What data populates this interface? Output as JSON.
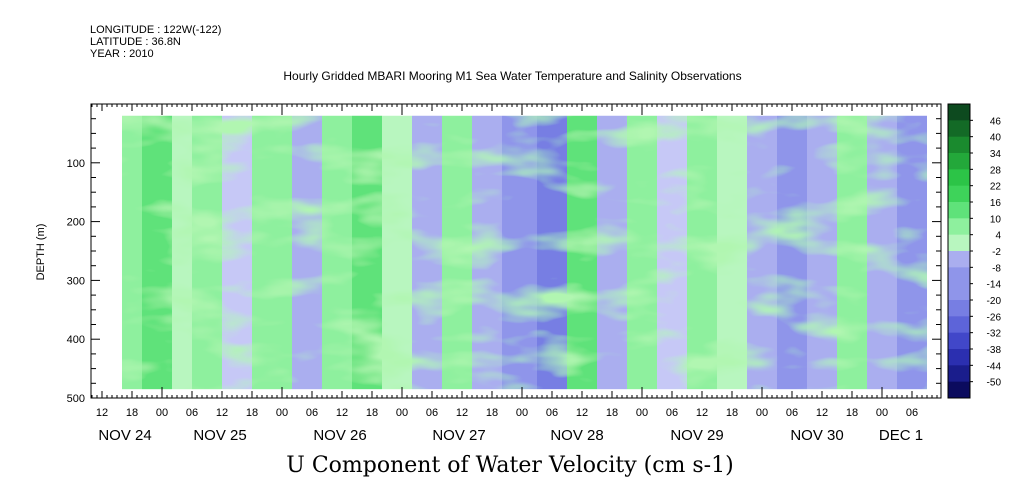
{
  "header": {
    "longitude": "LONGITUDE : 122W(-122)",
    "latitude": "LATITUDE : 36.8N",
    "year": "YEAR : 2010"
  },
  "chart_data": {
    "type": "heatmap",
    "title": "Hourly Gridded MBARI Mooring M1 Sea Water Temperature and Salinity Observations",
    "xlabel": "U Component of Water Velocity (cm s-1)",
    "ylabel": "DEPTH (m)",
    "ylim": [
      500,
      0
    ],
    "y_ticks": [
      "100",
      "200",
      "300",
      "400",
      "500"
    ],
    "x_hour_ticks": [
      "12",
      "18",
      "00",
      "06",
      "12",
      "18",
      "00",
      "06",
      "12",
      "18",
      "00",
      "06",
      "12",
      "18",
      "00",
      "06",
      "12",
      "18",
      "00",
      "06",
      "12",
      "18",
      "00",
      "06",
      "12",
      "18",
      "00",
      "06"
    ],
    "x_day_labels": [
      "NOV 24",
      "NOV 25",
      "NOV 26",
      "NOV 27",
      "NOV 28",
      "NOV 29",
      "NOV 30",
      "DEC  1"
    ],
    "data_extent": {
      "time_start": "NOV 24 16:00",
      "time_end": "DEC 1 09:00",
      "depth_min": 20,
      "depth_max": 485
    },
    "colorbar": {
      "labels": [
        "46",
        "40",
        "34",
        "28",
        "22",
        "16",
        "10",
        "4",
        "-2",
        "-8",
        "-14",
        "-20",
        "-26",
        "-32",
        "-38",
        "-44",
        "-50"
      ],
      "range": [
        -50,
        50
      ]
    },
    "velocity_bands": [
      {
        "start": "NOV 24 16:00",
        "end": "NOV 24 20:00",
        "value": 6
      },
      {
        "start": "NOV 24 20:00",
        "end": "NOV 25 02:00",
        "value": 10
      },
      {
        "start": "NOV 25 02:00",
        "end": "NOV 25 06:00",
        "value": 3
      },
      {
        "start": "NOV 25 06:00",
        "end": "NOV 25 12:00",
        "value": 9
      },
      {
        "start": "NOV 25 12:00",
        "end": "NOV 25 18:00",
        "value": -1
      },
      {
        "start": "NOV 25 18:00",
        "end": "NOV 26 02:00",
        "value": 9
      },
      {
        "start": "NOV 26 02:00",
        "end": "NOV 26 08:00",
        "value": -3
      },
      {
        "start": "NOV 26 08:00",
        "end": "NOV 26 14:00",
        "value": 6
      },
      {
        "start": "NOV 26 14:00",
        "end": "NOV 26 20:00",
        "value": 12
      },
      {
        "start": "NOV 26 20:00",
        "end": "NOV 27 02:00",
        "value": 2
      },
      {
        "start": "NOV 27 02:00",
        "end": "NOV 27 08:00",
        "value": -7
      },
      {
        "start": "NOV 27 08:00",
        "end": "NOV 27 14:00",
        "value": 4
      },
      {
        "start": "NOV 27 14:00",
        "end": "NOV 27 20:00",
        "value": -5
      },
      {
        "start": "NOV 27 20:00",
        "end": "NOV 28 03:00",
        "value": -9
      },
      {
        "start": "NOV 28 03:00",
        "end": "NOV 28 09:00",
        "value": -15
      },
      {
        "start": "NOV 28 09:00",
        "end": "NOV 28 15:00",
        "value": 10
      },
      {
        "start": "NOV 28 15:00",
        "end": "NOV 28 21:00",
        "value": -4
      },
      {
        "start": "NOV 28 21:00",
        "end": "NOV 29 03:00",
        "value": 6
      },
      {
        "start": "NOV 29 03:00",
        "end": "NOV 29 09:00",
        "value": 0
      },
      {
        "start": "NOV 29 09:00",
        "end": "NOV 29 15:00",
        "value": 9
      },
      {
        "start": "NOV 29 15:00",
        "end": "NOV 29 21:00",
        "value": 3
      },
      {
        "start": "NOV 29 21:00",
        "end": "NOV 30 03:00",
        "value": -8
      },
      {
        "start": "NOV 30 03:00",
        "end": "NOV 30 09:00",
        "value": -12
      },
      {
        "start": "NOV 30 09:00",
        "end": "NOV 30 15:00",
        "value": -3
      },
      {
        "start": "NOV 30 15:00",
        "end": "NOV 30 21:00",
        "value": 7
      },
      {
        "start": "NOV 30 21:00",
        "end": "DEC 1 03:00",
        "value": -6
      },
      {
        "start": "DEC 1 03:00",
        "end": "DEC 1 09:00",
        "value": -10
      }
    ]
  }
}
